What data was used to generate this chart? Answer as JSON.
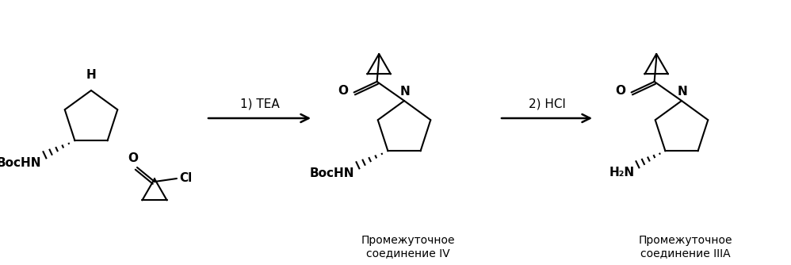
{
  "background_color": "#ffffff",
  "figsize": [
    9.98,
    3.34
  ],
  "dpi": 100,
  "label_iv": "Промежуточное\nсоединение IV",
  "label_iiia": "Промежуточное\nсоединение IIIA",
  "reagent1": "1) TEA",
  "reagent2": "2) HCl",
  "BocHN": "BocHN",
  "H2N": "H₂N",
  "NH": "H",
  "O_label": "O",
  "Cl_label": "Cl",
  "N_label": "N"
}
